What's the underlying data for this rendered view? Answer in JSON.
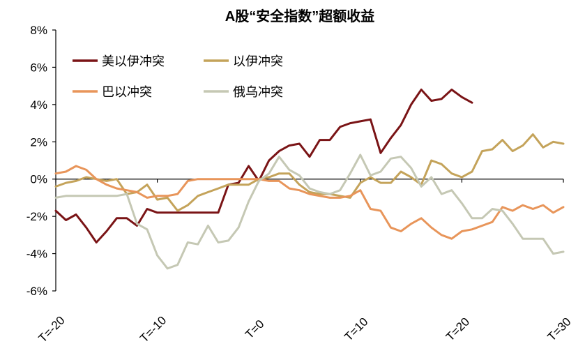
{
  "chart_data": {
    "type": "line",
    "title": "A股“安全指数”超额收益",
    "xlabel": "",
    "ylabel": "",
    "x_range": [
      -20,
      30
    ],
    "ylim": [
      -6,
      8
    ],
    "y_ticks": [
      -6,
      -4,
      -2,
      0,
      2,
      4,
      6,
      8
    ],
    "y_tick_labels": [
      "-6%",
      "-4%",
      "-2%",
      "0%",
      "2%",
      "4%",
      "6%",
      "8%"
    ],
    "x_ticks": [
      -20,
      -10,
      0,
      10,
      20,
      30
    ],
    "x_tick_labels": [
      "T=-20",
      "T=-10",
      "T=0",
      "T=10",
      "T=20",
      "T=30"
    ],
    "grid": false,
    "legend_position": "top-left",
    "series": [
      {
        "name": "美以伊冲突",
        "color": "#7a1416",
        "x": [
          -20,
          -19,
          -18,
          -17,
          -16,
          -15,
          -14,
          -13,
          -12,
          -11,
          -10,
          -9,
          -8,
          -7,
          -6,
          -5,
          -4,
          -3,
          -2,
          -1,
          0,
          1,
          2,
          3,
          4,
          5,
          6,
          7,
          8,
          9,
          10,
          11,
          12,
          13,
          14,
          15,
          16,
          17,
          18,
          19,
          20,
          21
        ],
        "values": [
          -1.7,
          -2.2,
          -1.9,
          -2.6,
          -3.4,
          -2.8,
          -2.1,
          -2.1,
          -2.5,
          -1.6,
          -1.8,
          -1.8,
          -1.8,
          -1.8,
          -1.8,
          -1.8,
          -1.8,
          -0.3,
          -0.2,
          0.7,
          -0.1,
          1.0,
          1.5,
          1.8,
          1.9,
          1.2,
          2.1,
          2.1,
          2.8,
          3.0,
          3.1,
          3.2,
          1.4,
          2.2,
          2.9,
          4.0,
          4.8,
          4.2,
          4.3,
          4.8,
          4.4,
          4.1
        ]
      },
      {
        "name": "以伊冲突",
        "color": "#c4a35a",
        "x": [
          -20,
          -19,
          -18,
          -17,
          -16,
          -15,
          -14,
          -13,
          -12,
          -11,
          -10,
          -9,
          -8,
          -7,
          -6,
          -5,
          -4,
          -3,
          -2,
          -1,
          0,
          1,
          2,
          3,
          4,
          5,
          6,
          7,
          8,
          9,
          10,
          11,
          12,
          13,
          14,
          15,
          16,
          17,
          18,
          19,
          20,
          21,
          22,
          23,
          24,
          25,
          26,
          27,
          28,
          29,
          30
        ],
        "values": [
          -0.4,
          -0.2,
          -0.1,
          0.1,
          0.0,
          -0.1,
          0.0,
          -0.8,
          -0.7,
          -0.3,
          -1.1,
          -1.0,
          -1.7,
          -1.4,
          -0.9,
          -0.7,
          -0.5,
          -0.3,
          -0.3,
          -0.3,
          0.0,
          0.1,
          0.3,
          0.3,
          -0.3,
          -0.7,
          -0.8,
          -0.8,
          -0.9,
          -1.0,
          -0.2,
          0.1,
          -0.2,
          -0.2,
          0.4,
          0.1,
          -0.3,
          1.0,
          0.8,
          0.3,
          0.1,
          0.4,
          1.5,
          1.6,
          2.1,
          1.5,
          1.8,
          2.4,
          1.7,
          2.0,
          1.9
        ]
      },
      {
        "name": "巴以冲突",
        "color": "#e8955a",
        "x": [
          -20,
          -19,
          -18,
          -17,
          -16,
          -15,
          -14,
          -13,
          -12,
          -11,
          -10,
          -9,
          -8,
          -7,
          -6,
          -5,
          -4,
          -3,
          -2,
          -1,
          0,
          1,
          2,
          3,
          4,
          5,
          6,
          7,
          8,
          9,
          10,
          11,
          12,
          13,
          14,
          15,
          16,
          17,
          18,
          19,
          20,
          21,
          22,
          23,
          24,
          25,
          26,
          27,
          28,
          29,
          30
        ],
        "values": [
          0.3,
          0.4,
          0.7,
          0.5,
          0.0,
          -0.3,
          -0.5,
          -0.6,
          -0.7,
          -1.0,
          -0.9,
          -0.9,
          -0.8,
          -0.1,
          0.0,
          0.0,
          0.0,
          0.0,
          0.0,
          0.0,
          0.0,
          -0.1,
          -0.1,
          -0.5,
          -0.6,
          -0.8,
          -0.9,
          -1.0,
          -1.0,
          -0.9,
          -0.6,
          -1.6,
          -1.7,
          -2.6,
          -2.8,
          -2.4,
          -2.1,
          -2.6,
          -3.0,
          -3.2,
          -2.8,
          -2.7,
          -2.5,
          -2.3,
          -1.5,
          -1.7,
          -1.4,
          -1.6,
          -1.4,
          -1.8,
          -1.5
        ]
      },
      {
        "name": "俄乌冲突",
        "color": "#c5c8b4",
        "x": [
          -20,
          -19,
          -18,
          -17,
          -16,
          -15,
          -14,
          -13,
          -12,
          -11,
          -10,
          -9,
          -8,
          -7,
          -6,
          -5,
          -4,
          -3,
          -2,
          -1,
          0,
          1,
          2,
          3,
          4,
          5,
          6,
          7,
          8,
          9,
          10,
          11,
          12,
          13,
          14,
          15,
          16,
          17,
          18,
          19,
          20,
          21,
          22,
          23,
          24,
          25,
          26,
          27,
          28,
          29,
          30
        ],
        "values": [
          -1.0,
          -0.9,
          -0.9,
          -0.9,
          -0.9,
          -0.9,
          -0.9,
          -0.8,
          -2.4,
          -2.7,
          -4.1,
          -4.8,
          -4.6,
          -3.4,
          -3.5,
          -2.5,
          -3.4,
          -3.3,
          -2.6,
          -1.2,
          -0.1,
          0.3,
          1.2,
          0.5,
          0.2,
          -0.5,
          -0.7,
          -0.8,
          -0.6,
          0.3,
          1.3,
          0.2,
          0.4,
          1.1,
          1.2,
          0.6,
          -0.4,
          0.1,
          -0.8,
          -0.6,
          -1.3,
          -2.1,
          -2.1,
          -1.6,
          -1.7,
          -2.4,
          -3.2,
          -3.2,
          -3.2,
          -4.0,
          -3.9
        ]
      }
    ]
  }
}
